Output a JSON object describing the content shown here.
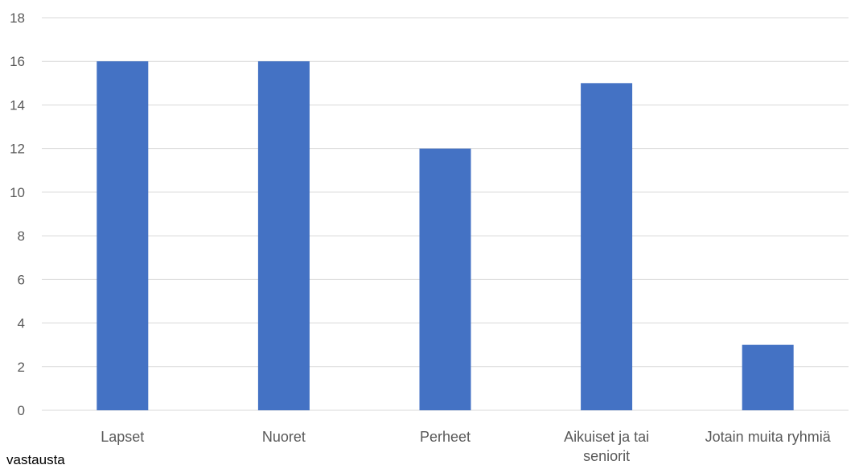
{
  "chart_data": {
    "type": "bar",
    "categories": [
      "Lapset",
      "Nuoret",
      "Perheet",
      "Aikuiset  ja tai seniorit",
      "Jotain muita ryhmiä"
    ],
    "category_lines": [
      [
        "Lapset"
      ],
      [
        "Nuoret"
      ],
      [
        "Perheet"
      ],
      [
        "Aikuiset  ja tai",
        "seniorit"
      ],
      [
        "Jotain muita ryhmiä"
      ]
    ],
    "values": [
      16,
      16,
      12,
      15,
      3
    ],
    "ylim": [
      0,
      18
    ],
    "yticks": [
      0,
      2,
      4,
      6,
      8,
      10,
      12,
      14,
      16,
      18
    ],
    "ylabel": "vastausta",
    "grid": true,
    "bar_color": "#4472C4",
    "grid_color": "#D9D9D9"
  }
}
